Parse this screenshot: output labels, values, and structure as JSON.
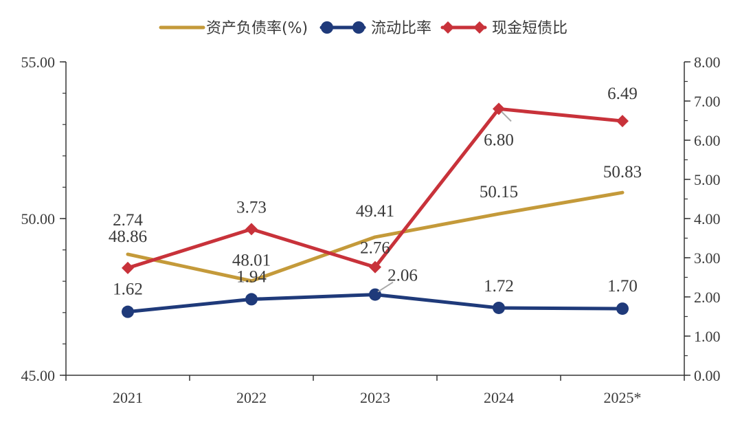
{
  "chart_data": {
    "type": "line",
    "categories": [
      "2021",
      "2022",
      "2023",
      "2024",
      "2025*"
    ],
    "series": [
      {
        "name": "资产负债率(%)",
        "axis": "left",
        "color": "#c49a3a",
        "marker": "none",
        "values": [
          48.86,
          48.01,
          49.41,
          50.15,
          50.83
        ],
        "labels": [
          "48.86",
          "48.01",
          "49.41",
          "50.15",
          "50.83"
        ]
      },
      {
        "name": "流动比率",
        "axis": "right",
        "color": "#1f3a7a",
        "marker": "circle",
        "values": [
          1.62,
          1.94,
          2.06,
          1.72,
          1.7
        ],
        "labels": [
          "1.62",
          "1.94",
          "2.06",
          "1.72",
          "1.70"
        ]
      },
      {
        "name": "现金短债比",
        "axis": "right",
        "color": "#c8323a",
        "marker": "diamond",
        "values": [
          2.74,
          3.73,
          2.76,
          6.8,
          6.49
        ],
        "labels": [
          "2.74",
          "3.73",
          "2.76",
          "6.80",
          "6.49"
        ]
      }
    ],
    "y_left": {
      "lim": [
        45,
        55
      ],
      "ticks": [
        45,
        50,
        55
      ],
      "tick_labels": [
        "45.00",
        "50.00",
        "55.00"
      ]
    },
    "y_right": {
      "lim": [
        0,
        8
      ],
      "ticks": [
        0,
        1,
        2,
        3,
        4,
        5,
        6,
        7,
        8
      ],
      "tick_labels": [
        "0.00",
        "1.00",
        "2.00",
        "3.00",
        "4.00",
        "5.00",
        "6.00",
        "7.00",
        "8.00"
      ]
    },
    "legend_position": "top-center",
    "grid": false
  }
}
